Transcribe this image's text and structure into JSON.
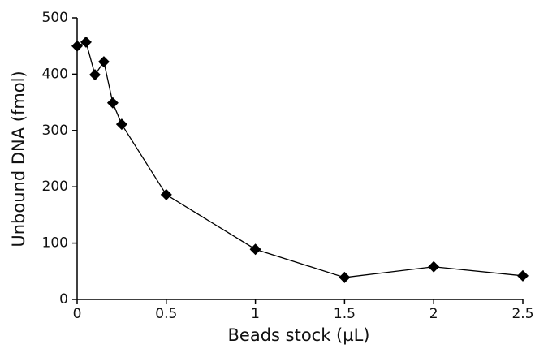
{
  "chart_data": {
    "type": "line",
    "x_label": "Beads stock (µL)",
    "y_label": "Unbound DNA (fmol)",
    "x": [
      0,
      0.05,
      0.1,
      0.15,
      0.2,
      0.25,
      0.5,
      1,
      1.5,
      2,
      2.5
    ],
    "values": [
      450,
      457,
      399,
      422,
      349,
      311,
      186,
      89,
      39,
      58,
      42
    ],
    "color": "#000000",
    "marker": "diamond",
    "xlim": [
      0,
      2.5
    ],
    "xticks": [
      0,
      0.5,
      1,
      1.5,
      2,
      2.5
    ],
    "ylim": [
      0,
      500
    ],
    "yticks": [
      0,
      100,
      200,
      300,
      400,
      500
    ],
    "grid": false
  }
}
